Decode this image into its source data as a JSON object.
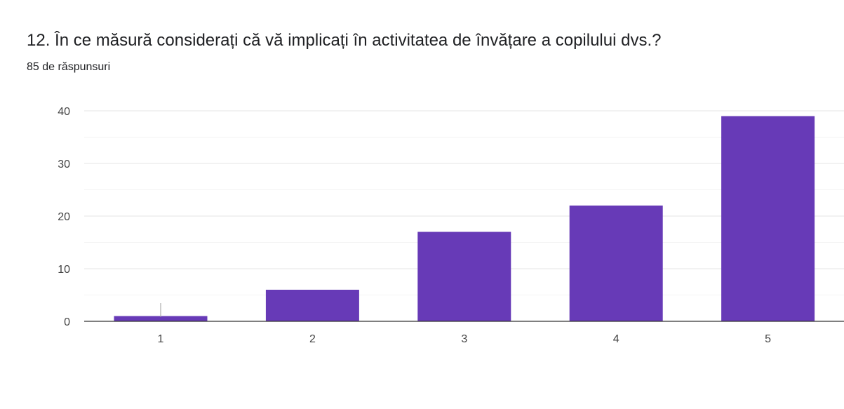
{
  "header": {
    "question_title": "12. În ce măsură considerați că vă implicați în activitatea de învățare a copilului dvs.?",
    "response_count": "85 de răspunsuri"
  },
  "chart_data": {
    "type": "bar",
    "categories": [
      "1",
      "2",
      "3",
      "4",
      "5"
    ],
    "values": [
      1,
      6,
      17,
      22,
      39
    ],
    "ylim": [
      0,
      40
    ],
    "yticks": [
      0,
      10,
      20,
      30,
      40
    ],
    "grid": true,
    "bar_color": "#673ab7"
  }
}
